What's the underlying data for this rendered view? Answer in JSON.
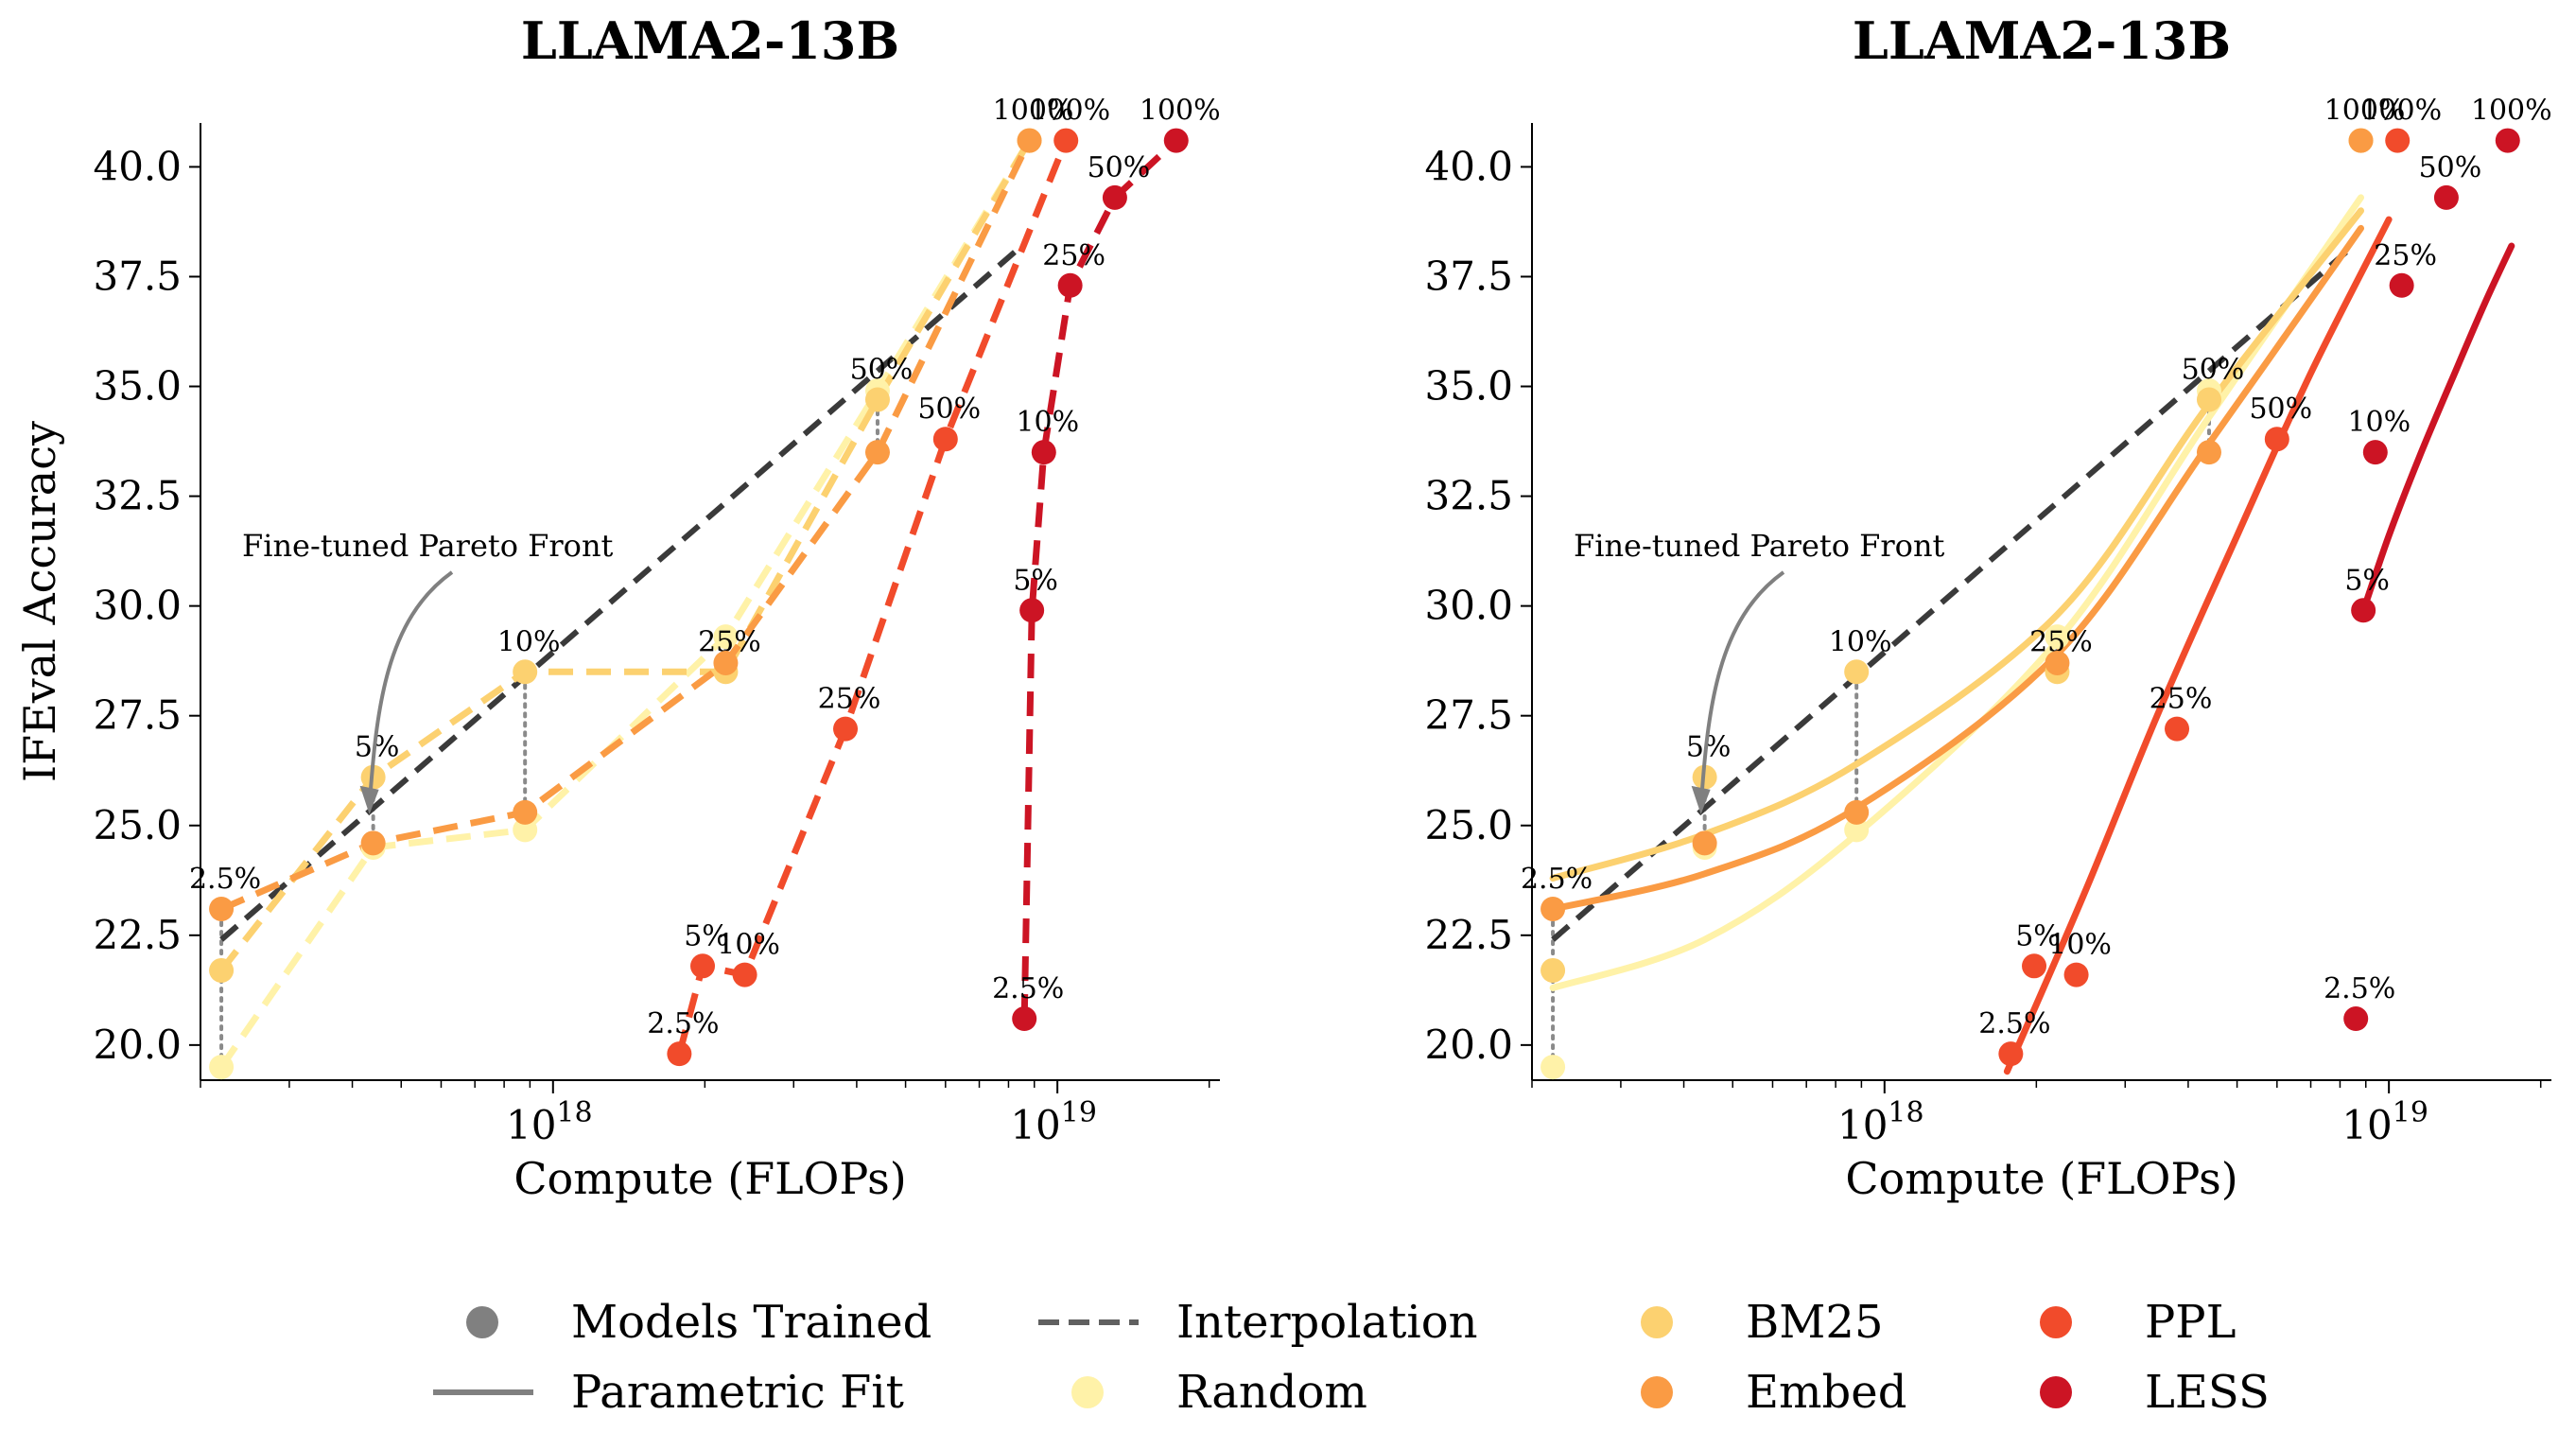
{
  "chart_data": [
    {
      "type": "scatter",
      "title": "LLAMA2-13B",
      "xlabel": "Compute (FLOPs)",
      "ylabel": "IFEval Accuracy",
      "xscale": "log",
      "xlim": [
        2e+17,
        2.1e+19
      ],
      "ylim": [
        19.2,
        41.0
      ],
      "xticks": [
        {
          "value": 1e+18,
          "base": "10",
          "exp": "18"
        },
        {
          "value": 1e+19,
          "base": "10",
          "exp": "19"
        }
      ],
      "yticks": [
        "20.0",
        "22.5",
        "25.0",
        "27.5",
        "30.0",
        "32.5",
        "35.0",
        "37.5",
        "40.0"
      ],
      "line_mode": "interpolation",
      "annotation": "Fine-tuned Pareto Front",
      "pareto_front": [
        {
          "x": 2.2e+17,
          "y": 22.4
        },
        {
          "x": 8.5e+18,
          "y": 38.2
        }
      ],
      "series": [
        {
          "name": "Random",
          "color": "#fff2a8",
          "points": [
            {
              "x": 2.2e+17,
              "y": 19.5,
              "label": ""
            },
            {
              "x": 4.4e+17,
              "y": 24.5,
              "label": ""
            },
            {
              "x": 8.8e+17,
              "y": 24.9,
              "label": ""
            },
            {
              "x": 2.2e+18,
              "y": 29.3,
              "label": ""
            },
            {
              "x": 4.4e+18,
              "y": 34.9,
              "label": ""
            },
            {
              "x": 8.8e+18,
              "y": 40.6,
              "label": ""
            }
          ]
        },
        {
          "name": "BM25",
          "color": "#fcd170",
          "points": [
            {
              "x": 2.2e+17,
              "y": 21.7,
              "label": ""
            },
            {
              "x": 4.4e+17,
              "y": 26.1,
              "label": "5%"
            },
            {
              "x": 8.8e+17,
              "y": 28.5,
              "label": "10%"
            },
            {
              "x": 2.2e+18,
              "y": 28.5,
              "label": "25%"
            },
            {
              "x": 4.4e+18,
              "y": 34.7,
              "label": "50%"
            },
            {
              "x": 8.8e+18,
              "y": 40.6,
              "label": "100%"
            }
          ]
        },
        {
          "name": "Embed",
          "color": "#fa9b44",
          "points": [
            {
              "x": 2.2e+17,
              "y": 23.1,
              "label": "2.5%"
            },
            {
              "x": 4.4e+17,
              "y": 24.6,
              "label": ""
            },
            {
              "x": 8.8e+17,
              "y": 25.3,
              "label": ""
            },
            {
              "x": 2.2e+18,
              "y": 28.7,
              "label": ""
            },
            {
              "x": 4.4e+18,
              "y": 33.5,
              "label": ""
            },
            {
              "x": 8.8e+18,
              "y": 40.6,
              "label": ""
            }
          ]
        },
        {
          "name": "PPL",
          "color": "#f14b2b",
          "points": [
            {
              "x": 1.78e+18,
              "y": 19.8,
              "label": "2.5%"
            },
            {
              "x": 1.98e+18,
              "y": 21.8,
              "label": "5%"
            },
            {
              "x": 2.4e+18,
              "y": 21.6,
              "label": "10%"
            },
            {
              "x": 3.8e+18,
              "y": 27.2,
              "label": "25%"
            },
            {
              "x": 6e+18,
              "y": 33.8,
              "label": "50%"
            },
            {
              "x": 1.04e+19,
              "y": 40.6,
              "label": "100%"
            }
          ]
        },
        {
          "name": "LESS",
          "color": "#cc1424",
          "points": [
            {
              "x": 8.6e+18,
              "y": 20.6,
              "label": "2.5%"
            },
            {
              "x": 8.9e+18,
              "y": 29.9,
              "label": "5%"
            },
            {
              "x": 9.4e+18,
              "y": 33.5,
              "label": "10%"
            },
            {
              "x": 1.06e+19,
              "y": 37.3,
              "label": "25%"
            },
            {
              "x": 1.3e+19,
              "y": 39.3,
              "label": "50%"
            },
            {
              "x": 1.72e+19,
              "y": 40.6,
              "label": "100%"
            }
          ]
        }
      ],
      "connectors": [
        {
          "x": 2.2e+17,
          "y_from": 19.5,
          "y_to": 23.1
        },
        {
          "x": 4.4e+17,
          "y_from": 24.5,
          "y_to": 26.1
        },
        {
          "x": 8.8e+17,
          "y_from": 24.9,
          "y_to": 28.5
        },
        {
          "x": 2.2e+18,
          "y_from": 28.5,
          "y_to": 29.3
        },
        {
          "x": 4.4e+18,
          "y_from": 33.5,
          "y_to": 34.9
        }
      ]
    },
    {
      "type": "scatter",
      "title": "LLAMA2-13B",
      "xlabel": "Compute (FLOPs)",
      "ylabel": "",
      "xscale": "log",
      "xlim": [
        2e+17,
        2.1e+19
      ],
      "ylim": [
        19.2,
        41.0
      ],
      "xticks": [
        {
          "value": 1e+18,
          "base": "10",
          "exp": "18"
        },
        {
          "value": 1e+19,
          "base": "10",
          "exp": "19"
        }
      ],
      "yticks": [
        "20.0",
        "22.5",
        "25.0",
        "27.5",
        "30.0",
        "32.5",
        "35.0",
        "37.5",
        "40.0"
      ],
      "line_mode": "parametric_fit",
      "annotation": "Fine-tuned Pareto Front",
      "pareto_front": [
        {
          "x": 2.2e+17,
          "y": 22.4
        },
        {
          "x": 8.5e+18,
          "y": 38.2
        }
      ],
      "series": [
        {
          "name": "Random",
          "color": "#fff2a8",
          "points": [
            {
              "x": 2.2e+17,
              "y": 19.5,
              "label": ""
            },
            {
              "x": 4.4e+17,
              "y": 24.5,
              "label": ""
            },
            {
              "x": 8.8e+17,
              "y": 24.9,
              "label": ""
            },
            {
              "x": 2.2e+18,
              "y": 29.3,
              "label": ""
            },
            {
              "x": 4.4e+18,
              "y": 34.9,
              "label": ""
            },
            {
              "x": 8.8e+18,
              "y": 40.6,
              "label": ""
            }
          ],
          "fit": [
            {
              "x": 2.2e+17,
              "y": 21.3
            },
            {
              "x": 4.4e+17,
              "y": 22.4
            },
            {
              "x": 8.8e+17,
              "y": 24.8
            },
            {
              "x": 2.2e+18,
              "y": 29.2
            },
            {
              "x": 4.4e+18,
              "y": 34.3
            },
            {
              "x": 8.8e+18,
              "y": 39.3
            }
          ]
        },
        {
          "name": "BM25",
          "color": "#fcd170",
          "points": [
            {
              "x": 2.2e+17,
              "y": 21.7,
              "label": ""
            },
            {
              "x": 4.4e+17,
              "y": 26.1,
              "label": "5%"
            },
            {
              "x": 8.8e+17,
              "y": 28.5,
              "label": "10%"
            },
            {
              "x": 2.2e+18,
              "y": 28.5,
              "label": "25%"
            },
            {
              "x": 4.4e+18,
              "y": 34.7,
              "label": "50%"
            },
            {
              "x": 8.8e+18,
              "y": 40.6,
              "label": "100%"
            }
          ],
          "fit": [
            {
              "x": 2.2e+17,
              "y": 23.8
            },
            {
              "x": 4.4e+17,
              "y": 24.8
            },
            {
              "x": 8.8e+17,
              "y": 26.4
            },
            {
              "x": 2.2e+18,
              "y": 29.8
            },
            {
              "x": 4.4e+18,
              "y": 34.6
            },
            {
              "x": 8.8e+18,
              "y": 39.0
            }
          ]
        },
        {
          "name": "Embed",
          "color": "#fa9b44",
          "points": [
            {
              "x": 2.2e+17,
              "y": 23.1,
              "label": "2.5%"
            },
            {
              "x": 4.4e+17,
              "y": 24.6,
              "label": ""
            },
            {
              "x": 8.8e+17,
              "y": 25.3,
              "label": ""
            },
            {
              "x": 2.2e+18,
              "y": 28.7,
              "label": ""
            },
            {
              "x": 4.4e+18,
              "y": 33.5,
              "label": ""
            },
            {
              "x": 8.8e+18,
              "y": 40.6,
              "label": ""
            }
          ],
          "fit": [
            {
              "x": 2.2e+17,
              "y": 23.1
            },
            {
              "x": 4.4e+17,
              "y": 23.9
            },
            {
              "x": 8.8e+17,
              "y": 25.4
            },
            {
              "x": 2.2e+18,
              "y": 28.9
            },
            {
              "x": 4.4e+18,
              "y": 33.7
            },
            {
              "x": 8.8e+18,
              "y": 38.6
            }
          ]
        },
        {
          "name": "PPL",
          "color": "#f14b2b",
          "points": [
            {
              "x": 1.78e+18,
              "y": 19.8,
              "label": "2.5%"
            },
            {
              "x": 1.98e+18,
              "y": 21.8,
              "label": "5%"
            },
            {
              "x": 2.4e+18,
              "y": 21.6,
              "label": "10%"
            },
            {
              "x": 3.8e+18,
              "y": 27.2,
              "label": "25%"
            },
            {
              "x": 6e+18,
              "y": 33.8,
              "label": "50%"
            },
            {
              "x": 1.04e+19,
              "y": 40.6,
              "label": "100%"
            }
          ],
          "fit": [
            {
              "x": 1.75e+18,
              "y": 19.4
            },
            {
              "x": 2.5e+18,
              "y": 23.5
            },
            {
              "x": 3.5e+18,
              "y": 27.6
            },
            {
              "x": 5e+18,
              "y": 31.6
            },
            {
              "x": 7e+18,
              "y": 35.3
            },
            {
              "x": 1e+19,
              "y": 38.8
            }
          ]
        },
        {
          "name": "LESS",
          "color": "#cc1424",
          "points": [
            {
              "x": 8.6e+18,
              "y": 20.6,
              "label": "2.5%"
            },
            {
              "x": 8.9e+18,
              "y": 29.9,
              "label": "5%"
            },
            {
              "x": 9.4e+18,
              "y": 33.5,
              "label": "10%"
            },
            {
              "x": 1.06e+19,
              "y": 37.3,
              "label": "25%"
            },
            {
              "x": 1.3e+19,
              "y": 39.3,
              "label": "50%"
            },
            {
              "x": 1.72e+19,
              "y": 40.6,
              "label": "100%"
            }
          ],
          "fit": [
            {
              "x": 8.9e+18,
              "y": 29.9
            },
            {
              "x": 1e+19,
              "y": 31.6
            },
            {
              "x": 1.15e+19,
              "y": 33.4
            },
            {
              "x": 1.35e+19,
              "y": 35.3
            },
            {
              "x": 1.55e+19,
              "y": 36.9
            },
            {
              "x": 1.75e+19,
              "y": 38.2
            }
          ]
        }
      ],
      "connectors": [
        {
          "x": 2.2e+17,
          "y_from": 19.5,
          "y_to": 23.1
        },
        {
          "x": 4.4e+17,
          "y_from": 24.5,
          "y_to": 26.1
        },
        {
          "x": 8.8e+17,
          "y_from": 24.9,
          "y_to": 28.5
        },
        {
          "x": 2.2e+18,
          "y_from": 28.5,
          "y_to": 29.3
        },
        {
          "x": 4.4e+18,
          "y_from": 33.5,
          "y_to": 34.9
        }
      ]
    }
  ],
  "legend": {
    "placement": "bottom-center",
    "items": [
      {
        "label": "Models Trained",
        "kind": "marker",
        "color": "#808080"
      },
      {
        "label": "Parametric Fit",
        "kind": "solid",
        "color": "#808080"
      },
      {
        "label": "Interpolation",
        "kind": "dashed",
        "color": "#606060"
      },
      {
        "label": "Random",
        "kind": "marker",
        "color": "#fff2a8"
      },
      {
        "label": "BM25",
        "kind": "marker",
        "color": "#fcd170"
      },
      {
        "label": "Embed",
        "kind": "marker",
        "color": "#fa9b44"
      },
      {
        "label": "PPL",
        "kind": "marker",
        "color": "#f14b2b"
      },
      {
        "label": "LESS",
        "kind": "marker",
        "color": "#cc1424"
      }
    ]
  },
  "colors": {
    "pareto": "#3a3a3a",
    "connector": "#8a8a8a",
    "annotation_arrow": "#808080"
  }
}
